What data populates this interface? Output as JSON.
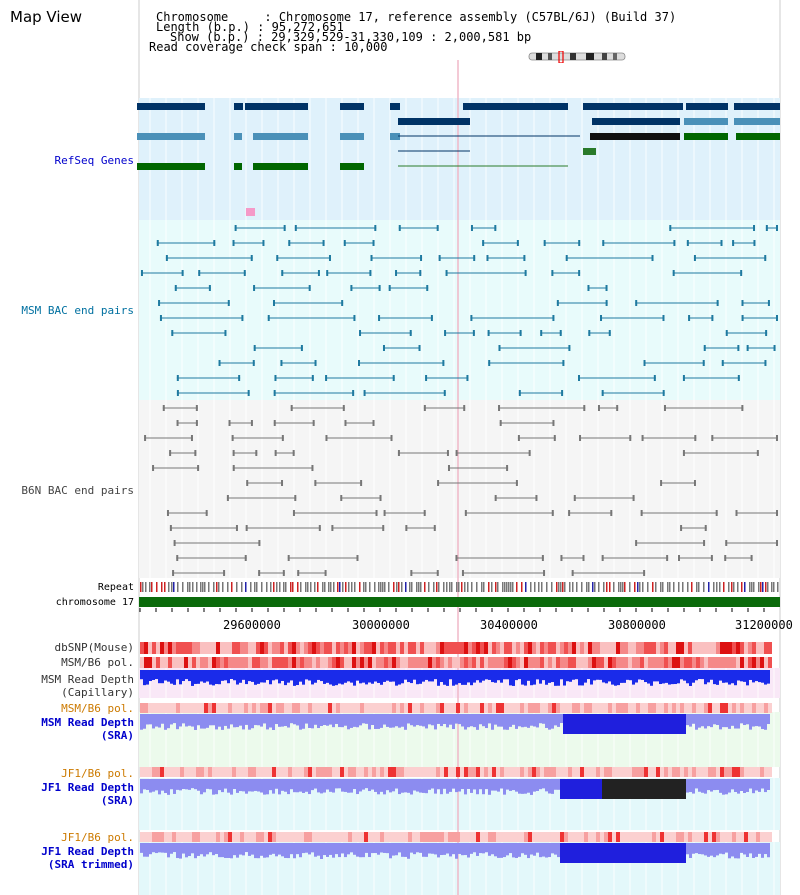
{
  "page": {
    "title": "Map View",
    "info_lines": [
      "Chromosome     : Chromosome 17, reference assembly (C57BL/6J) (Build 37)",
      "Length (b.p.) : 95,272,651",
      "Show (b.p.) : 29,329,529-31,330,109 : 2,000,581 bp",
      "Read coverage check span : 10,000"
    ]
  },
  "tracks": {
    "refseq": "RefSeq Genes",
    "msm_bac": "MSM BAC end pairs",
    "b6n_bac": "B6N BAC end pairs",
    "repeat": "Repeat",
    "chromosome": "chromosome 17",
    "dbsnp": "dbSNP(Mouse)",
    "msm_b6_pol": "MSM/B6 pol.",
    "msm_depth_cap_1": "MSM Read Depth",
    "msm_depth_cap_2": "(Capillary)",
    "msm_b6_pol_2": "MSM/B6 pol.",
    "msm_depth_sra_1": "MSM Read Depth",
    "msm_depth_sra_2": "(SRA)",
    "jf1_pol": "JF1/B6 pol.",
    "jf1_depth_sra_1": "JF1 Read Depth",
    "jf1_depth_sra_2": "(SRA)",
    "jf1_pol_2": "JF1/B6 pol.",
    "jf1_depth_trim_1": "JF1 Read Depth",
    "jf1_depth_trim_2": "(SRA trimmed)"
  },
  "axis": {
    "ticks": [
      "29600000",
      "30000000",
      "30400000",
      "30800000",
      "31200000"
    ]
  },
  "colors": {
    "refseq_label": "#0000cc",
    "msm_label": "#0070a0",
    "b6n_label": "#444444",
    "pol_label": "#cc7a00",
    "depth_label": "#0000cc",
    "gene_dark": "#003366",
    "gene_mid": "#4a90b8",
    "gene_green": "#006600",
    "chrom_green": "#0a6a0a"
  }
}
